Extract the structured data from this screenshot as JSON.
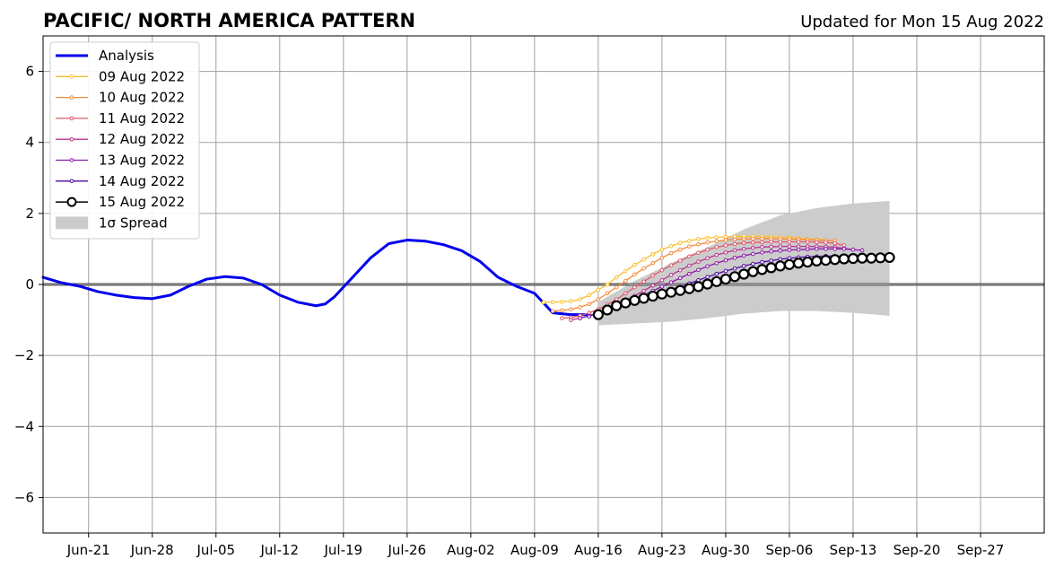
{
  "chart_data": {
    "type": "line",
    "title": "PACIFIC/ NORTH AMERICA PATTERN",
    "subtitle": "Updated for Mon 15 Aug 2022",
    "xlabel": "",
    "ylabel": "",
    "x_ticks": [
      "Jun-21",
      "Jun-28",
      "Jul-05",
      "Jul-12",
      "Jul-19",
      "Jul-26",
      "Aug-02",
      "Aug-09",
      "Aug-16",
      "Aug-23",
      "Aug-30",
      "Sep-06",
      "Sep-13",
      "Sep-20",
      "Sep-27"
    ],
    "y_ticks": [
      "−6",
      "−4",
      "−2",
      "0",
      "2",
      "4",
      "6"
    ],
    "ylim": [
      -7,
      7
    ],
    "xlim": [
      "2022-06-16",
      "2022-10-04"
    ],
    "grid": true,
    "legend_position": "upper-left",
    "analysis": {
      "name": "Analysis",
      "color": "#0000ee",
      "x": [
        "2022-06-16",
        "2022-06-18",
        "2022-06-20",
        "2022-06-22",
        "2022-06-24",
        "2022-06-26",
        "2022-06-28",
        "2022-06-30",
        "2022-07-02",
        "2022-07-04",
        "2022-07-06",
        "2022-07-08",
        "2022-07-10",
        "2022-07-12",
        "2022-07-14",
        "2022-07-16",
        "2022-07-17",
        "2022-07-18",
        "2022-07-20",
        "2022-07-22",
        "2022-07-24",
        "2022-07-26",
        "2022-07-28",
        "2022-07-30",
        "2022-08-01",
        "2022-08-03",
        "2022-08-05",
        "2022-08-07",
        "2022-08-09",
        "2022-08-11",
        "2022-08-13",
        "2022-08-15"
      ],
      "y": [
        0.2,
        0.05,
        -0.05,
        -0.2,
        -0.3,
        -0.37,
        -0.4,
        -0.3,
        -0.05,
        0.15,
        0.22,
        0.18,
        0.0,
        -0.3,
        -0.5,
        -0.6,
        -0.55,
        -0.35,
        0.2,
        0.75,
        1.15,
        1.25,
        1.22,
        1.12,
        0.95,
        0.65,
        0.2,
        -0.05,
        -0.25,
        -0.8,
        -0.85,
        -0.85
      ]
    },
    "spread": {
      "name": "1σ Spread",
      "color": "#cccccc",
      "x": [
        "2022-08-16",
        "2022-08-20",
        "2022-08-24",
        "2022-08-28",
        "2022-09-01",
        "2022-09-05",
        "2022-09-09",
        "2022-09-13",
        "2022-09-17"
      ],
      "upper": [
        -0.5,
        0.1,
        0.6,
        1.05,
        1.55,
        1.95,
        2.15,
        2.28,
        2.35
      ],
      "lower": [
        -1.15,
        -1.1,
        -1.05,
        -0.95,
        -0.82,
        -0.75,
        -0.75,
        -0.8,
        -0.88
      ]
    },
    "series": [
      {
        "name": "09 Aug 2022",
        "color": "#fbbf2c",
        "x_start": "2022-08-10",
        "x_end": "2022-09-10",
        "y": [
          -0.5,
          -0.5,
          -0.49,
          -0.47,
          -0.42,
          -0.3,
          -0.15,
          0.0,
          0.2,
          0.38,
          0.55,
          0.7,
          0.85,
          0.98,
          1.08,
          1.17,
          1.23,
          1.28,
          1.31,
          1.33,
          1.34,
          1.35,
          1.35,
          1.35,
          1.35,
          1.34,
          1.33,
          1.32,
          1.3,
          1.28,
          1.27,
          1.25
        ]
      },
      {
        "name": "10 Aug 2022",
        "color": "#f58a3a",
        "x_start": "2022-08-11",
        "x_end": "2022-09-11",
        "y": [
          -0.75,
          -0.73,
          -0.7,
          -0.64,
          -0.55,
          -0.42,
          -0.25,
          -0.08,
          0.1,
          0.28,
          0.45,
          0.6,
          0.75,
          0.88,
          0.98,
          1.07,
          1.13,
          1.18,
          1.22,
          1.25,
          1.27,
          1.28,
          1.29,
          1.29,
          1.29,
          1.28,
          1.28,
          1.27,
          1.26,
          1.25,
          1.24,
          1.23
        ]
      },
      {
        "name": "11 Aug 2022",
        "color": "#e0586a",
        "x_start": "2022-08-12",
        "x_end": "2022-09-12",
        "y": [
          -0.95,
          -0.93,
          -0.88,
          -0.8,
          -0.7,
          -0.57,
          -0.42,
          -0.25,
          -0.08,
          0.08,
          0.25,
          0.4,
          0.54,
          0.67,
          0.79,
          0.89,
          0.98,
          1.05,
          1.1,
          1.14,
          1.17,
          1.18,
          1.19,
          1.2,
          1.2,
          1.2,
          1.2,
          1.2,
          1.19,
          1.18,
          1.16,
          1.1
        ]
      },
      {
        "name": "12 Aug 2022",
        "color": "#b8368e",
        "x_start": "2022-08-13",
        "x_end": "2022-09-13",
        "y": [
          -1.0,
          -0.95,
          -0.88,
          -0.8,
          -0.7,
          -0.58,
          -0.45,
          -0.32,
          -0.18,
          -0.03,
          0.12,
          0.27,
          0.4,
          0.53,
          0.64,
          0.74,
          0.83,
          0.9,
          0.96,
          1.0,
          1.03,
          1.05,
          1.06,
          1.07,
          1.07,
          1.07,
          1.07,
          1.07,
          1.06,
          1.05,
          1.02,
          0.98
        ]
      },
      {
        "name": "13 Aug 2022",
        "color": "#8b18a8",
        "x_start": "2022-08-14",
        "x_end": "2022-09-14",
        "y": [
          -0.95,
          -0.88,
          -0.8,
          -0.72,
          -0.63,
          -0.53,
          -0.42,
          -0.3,
          -0.18,
          -0.06,
          0.06,
          0.18,
          0.3,
          0.41,
          0.51,
          0.6,
          0.68,
          0.75,
          0.81,
          0.86,
          0.9,
          0.93,
          0.95,
          0.97,
          0.98,
          0.99,
          1.0,
          1.0,
          1.0,
          1.0,
          0.98,
          0.96
        ]
      },
      {
        "name": "14 Aug 2022",
        "color": "#500aa0",
        "x_start": "2022-08-15",
        "x_end": "2022-09-15",
        "y": [
          -0.9,
          -0.8,
          -0.72,
          -0.64,
          -0.56,
          -0.48,
          -0.4,
          -0.32,
          -0.24,
          -0.15,
          -0.06,
          0.03,
          0.12,
          0.21,
          0.3,
          0.38,
          0.45,
          0.52,
          0.58,
          0.63,
          0.67,
          0.71,
          0.74,
          0.76,
          0.78,
          0.79,
          0.8,
          0.8,
          0.8,
          0.8,
          0.8,
          0.8
        ]
      },
      {
        "name": "15 Aug 2022",
        "color": "#000000",
        "x_start": "2022-08-16",
        "x_end": "2022-09-17",
        "y": [
          -0.85,
          -0.72,
          -0.6,
          -0.52,
          -0.45,
          -0.39,
          -0.33,
          -0.27,
          -0.22,
          -0.17,
          -0.12,
          -0.06,
          0.01,
          0.08,
          0.15,
          0.22,
          0.29,
          0.36,
          0.42,
          0.47,
          0.52,
          0.56,
          0.6,
          0.63,
          0.66,
          0.68,
          0.7,
          0.72,
          0.73,
          0.74,
          0.74,
          0.75,
          0.76
        ]
      }
    ]
  }
}
